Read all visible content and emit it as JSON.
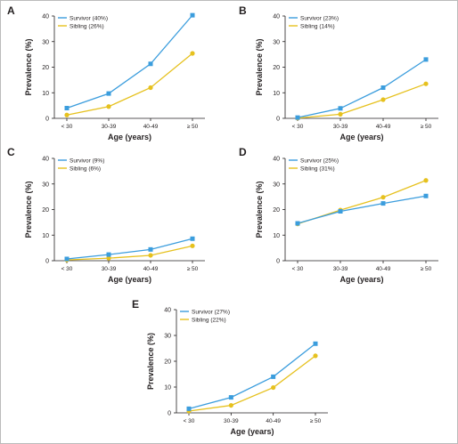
{
  "colors": {
    "survivor": "#3b9ddd",
    "sibling": "#e6c11e",
    "axis": "#231f20",
    "frame": "#bbbbbb"
  },
  "axis_text": {
    "xlabel": "Age (years)",
    "ylabel": "Prevalence (%)"
  },
  "chart_data": [
    {
      "type": "line",
      "panel": "A",
      "categories": [
        "< 30",
        "30-39",
        "40-49",
        "≥ 50"
      ],
      "ylim": [
        0,
        40
      ],
      "yticks": [
        0,
        10,
        20,
        30,
        40
      ],
      "xlabel": "Age (years)",
      "ylabel": "Prevalence (%)",
      "legend_position": "top-left",
      "series": [
        {
          "name": "Survivor (40%)",
          "marker": "square",
          "values": [
            4,
            9.7,
            21.3,
            40.3
          ]
        },
        {
          "name": "Sibling (26%)",
          "marker": "circle",
          "values": [
            1.3,
            4.6,
            12,
            25.4
          ]
        }
      ]
    },
    {
      "type": "line",
      "panel": "B",
      "categories": [
        "< 30",
        "30-39",
        "40-49",
        "≥ 50"
      ],
      "ylim": [
        0,
        40
      ],
      "yticks": [
        0,
        10,
        20,
        30,
        40
      ],
      "xlabel": "Age (years)",
      "ylabel": "Prevalence (%)",
      "legend_position": "top-left",
      "series": [
        {
          "name": "Survivor (23%)",
          "marker": "square",
          "values": [
            0.3,
            3.9,
            12,
            23
          ]
        },
        {
          "name": "Sibling (14%)",
          "marker": "circle",
          "values": [
            0.1,
            1.6,
            7.3,
            13.5
          ]
        }
      ]
    },
    {
      "type": "line",
      "panel": "C",
      "categories": [
        "< 30",
        "30-39",
        "40-49",
        "≥ 50"
      ],
      "ylim": [
        0,
        40
      ],
      "yticks": [
        0,
        10,
        20,
        30,
        40
      ],
      "xlabel": "Age (years)",
      "ylabel": "Prevalence (%)",
      "legend_position": "top-left",
      "series": [
        {
          "name": "Survivor (9%)",
          "marker": "square",
          "values": [
            0.7,
            2.4,
            4.4,
            8.6
          ]
        },
        {
          "name": "Sibling (6%)",
          "marker": "circle",
          "values": [
            0.3,
            1,
            2.1,
            5.8
          ]
        }
      ]
    },
    {
      "type": "line",
      "panel": "D",
      "categories": [
        "< 30",
        "30-39",
        "40-49",
        "≥ 50"
      ],
      "ylim": [
        0,
        40
      ],
      "yticks": [
        0,
        10,
        20,
        30,
        40
      ],
      "xlabel": "Age (years)",
      "ylabel": "Prevalence (%)",
      "legend_position": "top-left",
      "series": [
        {
          "name": "Survivor (25%)",
          "marker": "square",
          "values": [
            14.6,
            19.3,
            22.4,
            25.3
          ]
        },
        {
          "name": "Sibling (31%)",
          "marker": "circle",
          "values": [
            14.4,
            19.8,
            24.8,
            31.4
          ]
        }
      ]
    },
    {
      "type": "line",
      "panel": "E",
      "categories": [
        "< 30",
        "30-39",
        "40-49",
        "≥ 50"
      ],
      "ylim": [
        0,
        40
      ],
      "yticks": [
        0,
        10,
        20,
        30,
        40
      ],
      "xlabel": "Age (years)",
      "ylabel": "Prevalence (%)",
      "legend_position": "top-left",
      "series": [
        {
          "name": "Survivor (27%)",
          "marker": "square",
          "values": [
            1.6,
            6,
            14,
            26.8
          ]
        },
        {
          "name": "Sibling (22%)",
          "marker": "circle",
          "values": [
            0.7,
            2.9,
            9.8,
            22.1
          ]
        }
      ]
    }
  ]
}
